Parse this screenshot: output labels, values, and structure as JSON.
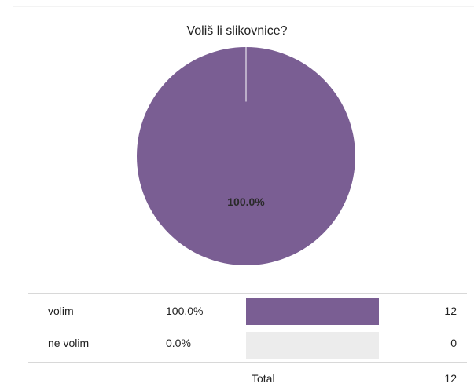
{
  "chart_data": {
    "type": "pie",
    "title": "Voliš li slikovnice?",
    "slices": [
      {
        "label": "volim",
        "value": 12,
        "percent_label": "100.0%",
        "color": "#7a5e93"
      },
      {
        "label": "ne volim",
        "value": 0,
        "percent_label": "0.0%",
        "color": "#ececec"
      }
    ]
  },
  "results": {
    "rows": [
      {
        "label": "volim",
        "percent": "100.0%",
        "fraction": 1.0,
        "count": "12"
      },
      {
        "label": "ne volim",
        "percent": "0.0%",
        "fraction": 0.0,
        "count": "0"
      }
    ],
    "total_label": "Total",
    "total_count": "12"
  },
  "colors": {
    "accent": "#7a5e93",
    "empty": "#ececec",
    "divider": "#d8d8d8"
  }
}
